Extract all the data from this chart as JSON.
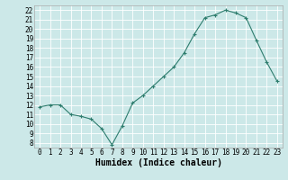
{
  "x": [
    0,
    1,
    2,
    3,
    4,
    5,
    6,
    7,
    8,
    9,
    10,
    11,
    12,
    13,
    14,
    15,
    16,
    17,
    18,
    19,
    20,
    21,
    22,
    23
  ],
  "y": [
    11.8,
    12.0,
    12.0,
    11.0,
    10.8,
    10.5,
    9.5,
    7.8,
    9.8,
    12.2,
    13.0,
    14.0,
    15.0,
    16.0,
    17.5,
    19.5,
    21.2,
    21.5,
    22.0,
    21.7,
    21.2,
    18.8,
    16.5,
    14.5
  ],
  "line_color": "#2e7d6e",
  "marker": "+",
  "marker_size": 3,
  "linewidth": 0.8,
  "background_color": "#cce8e8",
  "grid_color": "#ffffff",
  "xlabel": "Humidex (Indice chaleur)",
  "xlim": [
    -0.5,
    23.5
  ],
  "ylim": [
    7.5,
    22.5
  ],
  "yticks": [
    8,
    9,
    10,
    11,
    12,
    13,
    14,
    15,
    16,
    17,
    18,
    19,
    20,
    21,
    22
  ],
  "xticks": [
    0,
    1,
    2,
    3,
    4,
    5,
    6,
    7,
    8,
    9,
    10,
    11,
    12,
    13,
    14,
    15,
    16,
    17,
    18,
    19,
    20,
    21,
    22,
    23
  ],
  "xlabel_fontsize": 7,
  "tick_fontsize": 5.5
}
